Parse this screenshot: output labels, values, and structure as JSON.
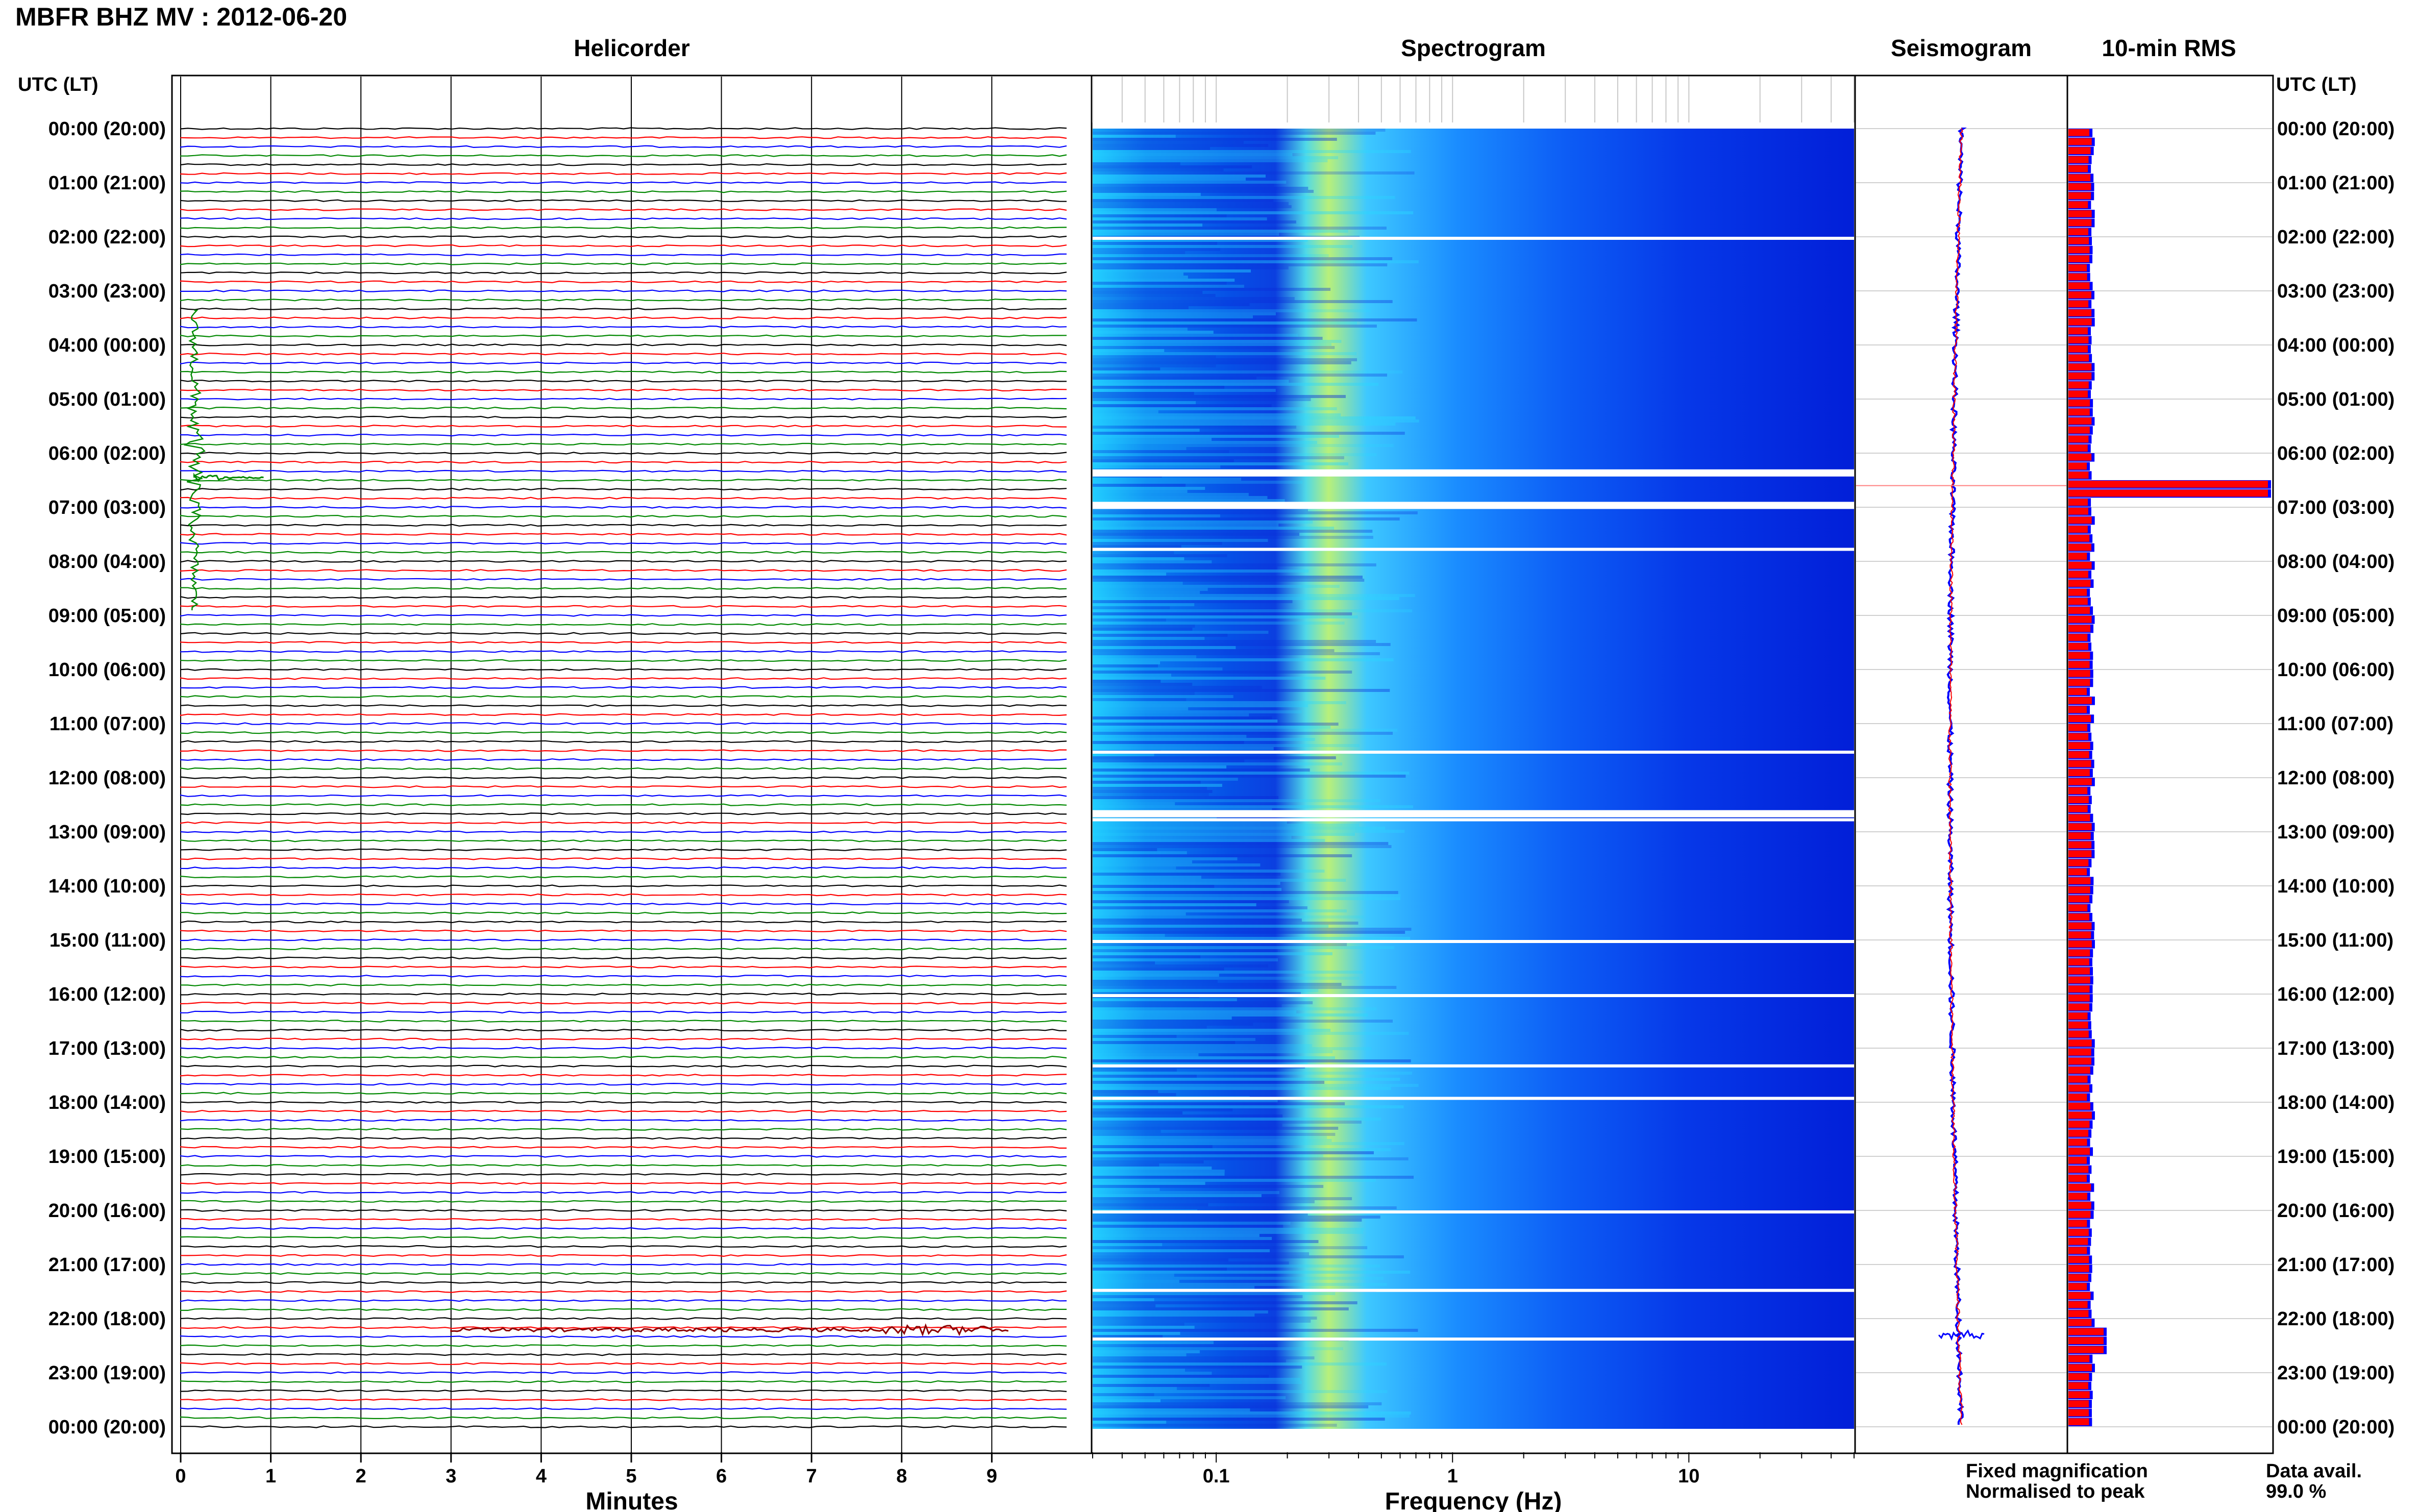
{
  "figure": {
    "title": "MBFR BHZ MV : 2012-06-20",
    "utc_header_left": "UTC (LT)",
    "utc_header_right": "UTC (LT)",
    "time_labels": [
      "00:00 (20:00)",
      "01:00 (21:00)",
      "02:00 (22:00)",
      "03:00 (23:00)",
      "04:00 (00:00)",
      "05:00 (01:00)",
      "06:00 (02:00)",
      "07:00 (03:00)",
      "08:00 (04:00)",
      "09:00 (05:00)",
      "10:00 (06:00)",
      "11:00 (07:00)",
      "12:00 (08:00)",
      "13:00 (09:00)",
      "14:00 (10:00)",
      "15:00 (11:00)",
      "16:00 (12:00)",
      "17:00 (13:00)",
      "18:00 (14:00)",
      "19:00 (15:00)",
      "20:00 (16:00)",
      "21:00 (17:00)",
      "22:00 (18:00)",
      "23:00 (19:00)",
      "00:00 (20:00)"
    ],
    "legend": {
      "fixed_label": "Fixed magnification",
      "fixed_color": "#0000ff",
      "normalised_label": "Normalised to peak",
      "normalised_color": "#ff0000"
    },
    "data_avail_label": "Data avail.",
    "data_avail_value": "99.0 %"
  },
  "chart_data": [
    {
      "type": "helicorder",
      "title": "Helicorder",
      "xlabel": "Minutes",
      "xticks": [
        "0",
        "1",
        "2",
        "3",
        "4",
        "5",
        "6",
        "7",
        "8",
        "9"
      ],
      "xlim": [
        0,
        10
      ],
      "lines_per_hour": 6,
      "hours": 24,
      "line_colors": [
        "#000000",
        "#ff0000",
        "#0000ff",
        "#008800"
      ],
      "events": [
        {
          "hour_utc": 6,
          "minute": 0.15,
          "description": "large transient"
        },
        {
          "hour_utc": 22,
          "minute": 8,
          "description": "burst of activity"
        }
      ]
    },
    {
      "type": "heatmap",
      "title": "Spectrogram",
      "xlabel": "Frequency (Hz)",
      "xscale": "log",
      "xticks": [
        "0.1",
        "1",
        "10"
      ],
      "xlim": [
        0.03,
        50
      ],
      "colormap": [
        "#0000ff",
        "#00ffff",
        "#ffff00"
      ]
    },
    {
      "type": "line",
      "title": "Seismogram"
    },
    {
      "type": "bar",
      "title": "10-min RMS",
      "orientation": "horizontal",
      "series": [
        {
          "name": "Fixed magnification",
          "color": "#0000ff"
        },
        {
          "name": "Normalised to peak",
          "color": "#ff0000"
        }
      ],
      "peak_hour_utc": 6.6
    }
  ]
}
